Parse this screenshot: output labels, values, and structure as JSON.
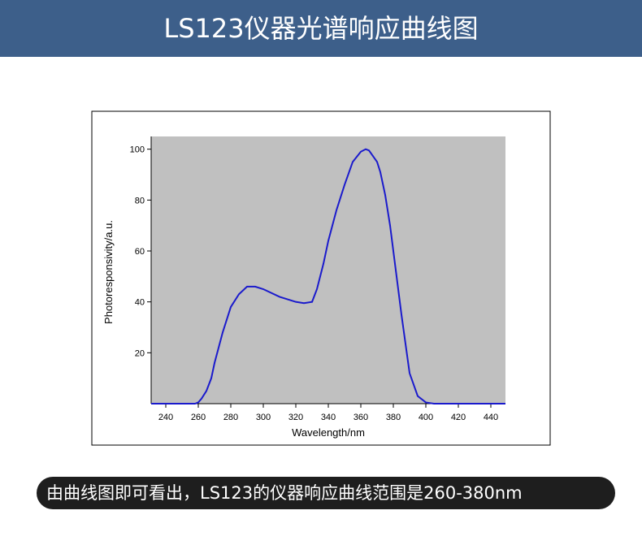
{
  "header": {
    "title": "LS123仪器光谱响应曲线图"
  },
  "chart_data": {
    "type": "line",
    "x_label": "Wavelength/nm",
    "y_label": "Photoresponsivity/a.u.",
    "x": [
      231,
      240,
      250,
      255,
      258,
      260,
      262,
      265,
      268,
      270,
      275,
      280,
      285,
      290,
      295,
      300,
      310,
      320,
      325,
      330,
      333,
      337,
      340,
      345,
      350,
      355,
      360,
      363,
      365,
      370,
      372,
      375,
      378,
      380,
      385,
      390,
      395,
      400,
      405,
      410,
      420,
      449
    ],
    "series": [
      {
        "name": "Photoresponsivity",
        "color": "#1a1acc",
        "values": [
          0,
          0,
          0,
          0,
          0,
          0.5,
          2,
          5,
          10,
          16,
          28,
          38,
          43,
          46,
          46,
          45,
          42,
          40,
          39.5,
          40,
          45,
          55,
          64,
          76,
          86,
          95,
          99,
          100,
          99.5,
          95,
          91,
          82,
          70,
          60,
          35,
          12,
          3,
          0.5,
          0,
          0,
          0,
          0
        ]
      }
    ],
    "xlim": [
      231,
      449
    ],
    "ylim": [
      0,
      105
    ],
    "xticks": [
      240,
      260,
      280,
      300,
      320,
      340,
      360,
      380,
      400,
      420,
      440
    ],
    "yticks": [
      20,
      40,
      60,
      80,
      100
    ],
    "plot_background": "#c0c0c0"
  },
  "caption": "由曲线图即可看出，LS123的仪器响应曲线范围是260-380nm"
}
